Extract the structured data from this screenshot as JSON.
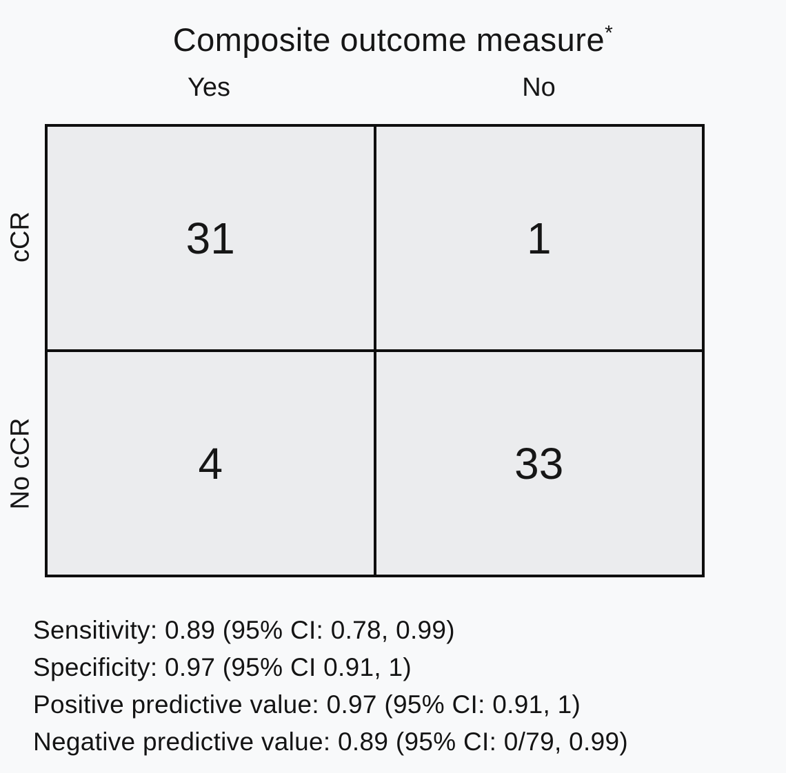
{
  "figure": {
    "title": "Composite outcome measure",
    "title_superscript": "*",
    "col_headers": {
      "yes": "Yes",
      "no": "No"
    },
    "row_headers": {
      "top": "cCR",
      "bottom": "No cCR"
    },
    "cells": [
      [
        "31",
        "1"
      ],
      [
        "4",
        "33"
      ]
    ],
    "stats": [
      "Sensitivity: 0.89 (95% CI: 0.78, 0.99)",
      "Specificity: 0.97 (95% CI 0.91, 1)",
      "Positive predictive value: 0.97 (95% CI: 0.91, 1)",
      "Negative predictive value: 0.89 (95% CI: 0/79, 0.99)"
    ],
    "colors": {
      "background": "#f8f9fa",
      "cell_fill": "#ebecee",
      "border": "#0e0e0e",
      "text": "#1a1a1a"
    }
  },
  "chart_data": {
    "type": "table",
    "title": "Composite outcome measure*",
    "columns": [
      "Yes",
      "No"
    ],
    "rows": [
      "cCR",
      "No cCR"
    ],
    "values": [
      [
        31,
        1
      ],
      [
        4,
        33
      ]
    ],
    "annotations": [
      "Sensitivity: 0.89 (95% CI: 0.78, 0.99)",
      "Specificity: 0.97 (95% CI 0.91, 1)",
      "Positive predictive value: 0.97 (95% CI: 0.91, 1)",
      "Negative predictive value: 0.89 (95% CI: 0/79, 0.99)"
    ]
  }
}
